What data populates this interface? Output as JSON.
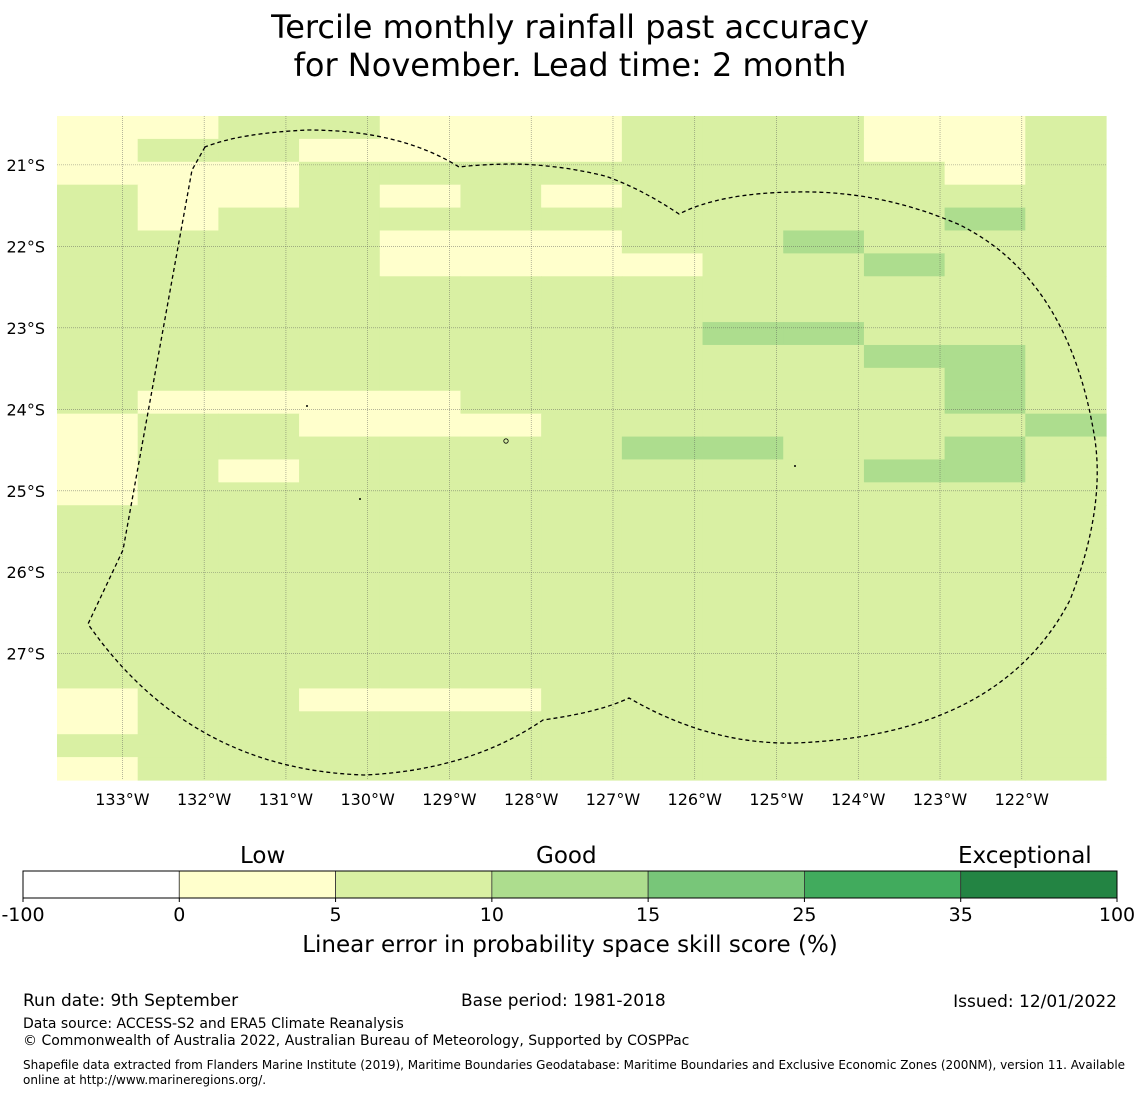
{
  "title": {
    "line1": "Tercile monthly rainfall past accuracy",
    "line2": "for November. Lead time: 2 month"
  },
  "map": {
    "lat_labels": [
      "21°S",
      "22°S",
      "23°S",
      "24°S",
      "25°S",
      "26°S",
      "27°S"
    ],
    "lon_labels": [
      "133°W",
      "132°W",
      "131°W",
      "130°W",
      "129°W",
      "128°W",
      "127°W",
      "126°W",
      "125°W",
      "124°W",
      "123°W",
      "122°W"
    ],
    "extent": {
      "lon_min": -133.8,
      "lon_max": -120.97,
      "lat_min": -28.55,
      "lat_max": -20.4
    },
    "grid_colors": {
      "a": "#ffffcc",
      "b": "#d9f0a3",
      "c": "#addd8e",
      "w": "#ffffff"
    },
    "grid_rows": [
      "aabbaaabbbaab",
      "abbaaaabbbaab",
      "aaabbbbbbbbab",
      "baabababbbbbb",
      "babbbbbbbbbcb",
      "bbbbaaabbcbbb",
      "bbbbaaaabbcbb",
      "bbbbbbbbbbbbb",
      "bbbbbbbbbbbbb",
      "bbbbbbbbccbbb",
      "bbbbbbbbbbccb",
      "bbbbbbbbbbbcb",
      "baaaabbbbbbcb",
      "abbaaabbbbbbc",
      "abbbbbbccbbcb",
      "ababbbbbbbccb",
      "abbbbbbbbbbbb",
      "bbbbbbbbbbbbb",
      "bbbbbbbbbbbbb",
      "bbbbbbbbbbbbb",
      "bbbbbbbbbbbbb",
      "bbbbbbbbbbbbb",
      "bbbbbbbbbbbbb",
      "bbbbbbbbbbbbb",
      "bbbbbbbbbbbbb",
      "abbaaabbbbbbb",
      "abbbbbbbbbbbb",
      "bbbbbbbbbbbbb",
      "abbbbbbbbbbbb"
    ]
  },
  "colorbar": {
    "categories": [
      "Low",
      "Good",
      "Exceptional"
    ],
    "ticks": [
      "-100",
      "0",
      "5",
      "10",
      "15",
      "25",
      "35",
      "100"
    ],
    "colors": [
      "#ffffff",
      "#ffffcc",
      "#d9f0a3",
      "#addd8e",
      "#78c679",
      "#41ab5d",
      "#238443"
    ],
    "label": "Linear error in probability space skill score (%)"
  },
  "footer": {
    "run_date": "Run date: 9th September",
    "base_period": "Base period: 1981-2018",
    "issued": "Issued: 12/01/2022",
    "data_source": "Data source: ACCESS-S2 and ERA5 Climate Reanalysis",
    "copyright": "© Commonwealth of Australia 2022, Australian Bureau of Meteorology, Supported by COSPPac",
    "shapefile": "Shapefile data extracted from Flanders Marine Institute (2019), Maritime Boundaries Geodatabase: Maritime Boundaries and Exclusive Economic Zones (200NM), version 11. Available online at http://www.marineregions.org/."
  }
}
